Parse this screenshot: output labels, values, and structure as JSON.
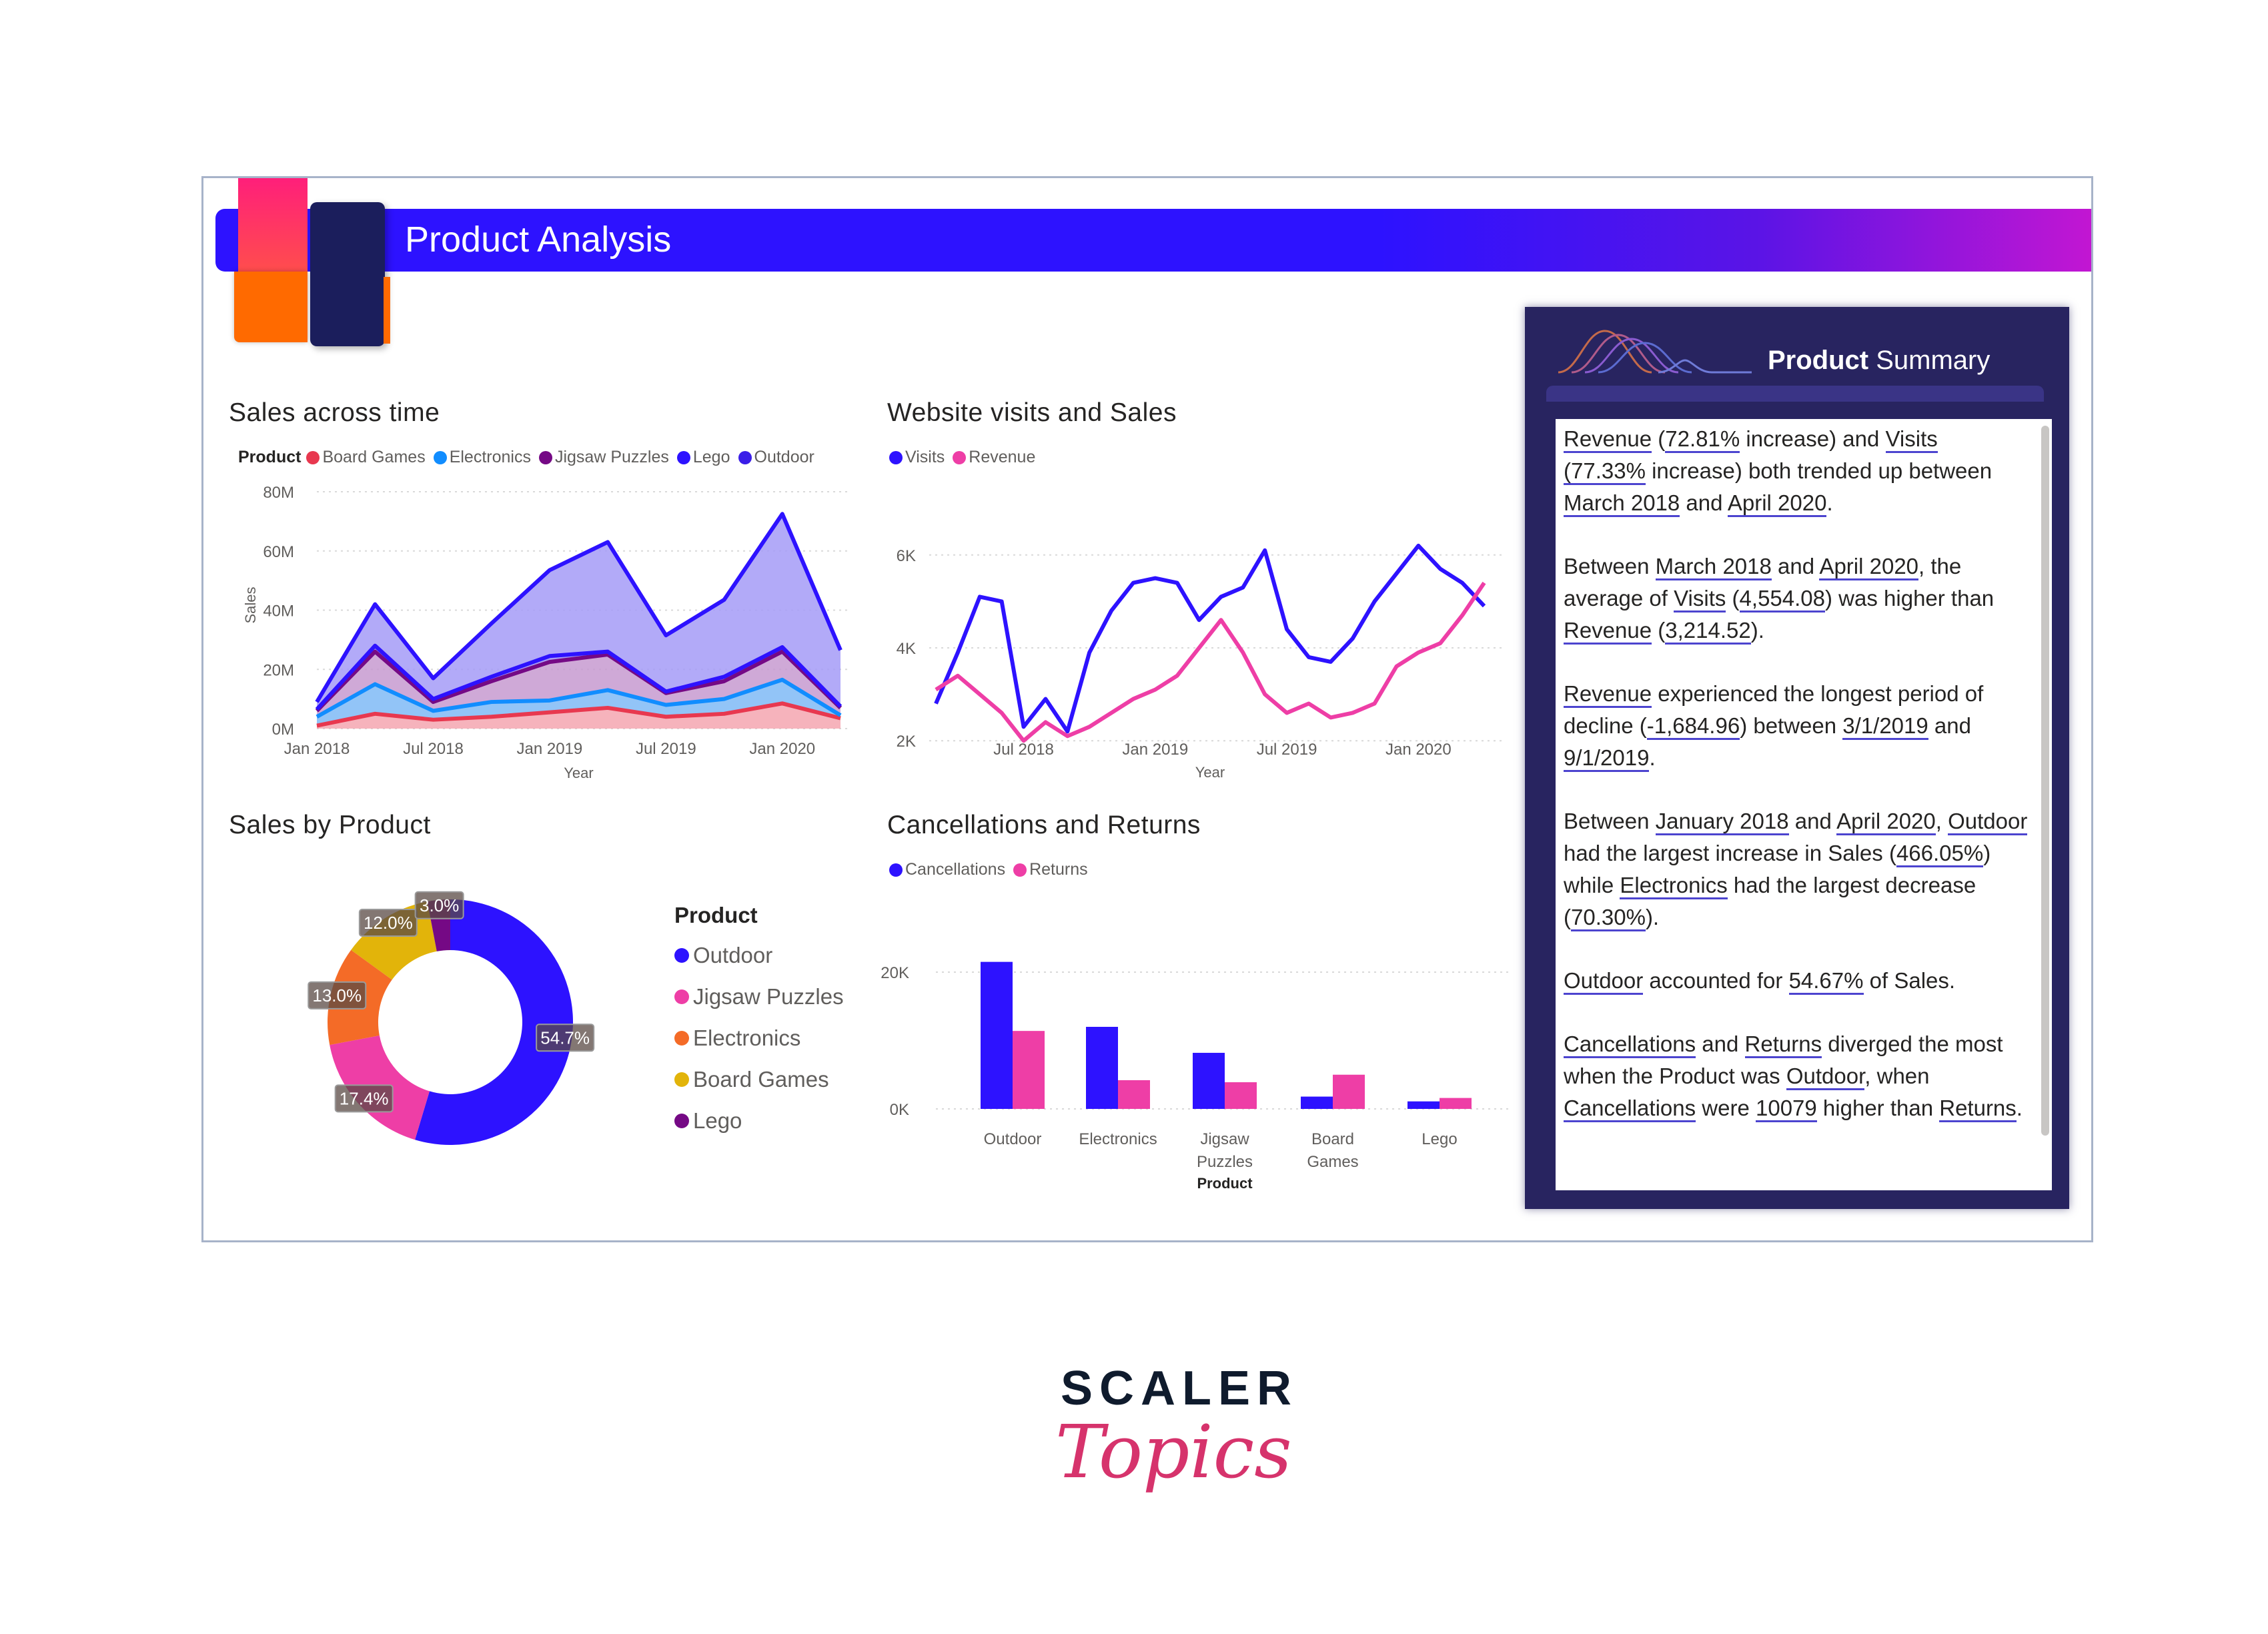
{
  "header": {
    "title": "Product Analysis"
  },
  "colors": {
    "banner": "#2d12ff",
    "summary_bg": "#282460",
    "accent_pink": "#ee3ea6",
    "brand_pink": "#d6336c"
  },
  "sales_time": {
    "title": "Sales across time",
    "legend_title": "Product",
    "series_names": [
      "Board Games",
      "Electronics",
      "Jigsaw Puzzles",
      "Lego",
      "Outdoor"
    ],
    "y_ticks": [
      "80M",
      "60M",
      "40M",
      "20M",
      "0M"
    ],
    "y_label": "Sales",
    "x_ticks": [
      "Jan 2018",
      "Jul 2018",
      "Jan 2019",
      "Jul 2019",
      "Jan 2020"
    ],
    "x_label": "Year"
  },
  "visits": {
    "title": "Website visits and Sales",
    "series_names": [
      "Visits",
      "Revenue"
    ],
    "y_ticks": [
      "6K",
      "4K",
      "2K"
    ],
    "x_ticks": [
      "Jul 2018",
      "Jan 2019",
      "Jul 2019",
      "Jan 2020"
    ],
    "x_label": "Year"
  },
  "donut": {
    "title": "Sales by Product",
    "legend_title": "Product",
    "labels": [
      "Outdoor",
      "Jigsaw Puzzles",
      "Electronics",
      "Board Games",
      "Lego"
    ],
    "pct_labels": [
      "54.7%",
      "17.4%",
      "13.0%",
      "12.0%",
      "3.0%"
    ]
  },
  "cancel": {
    "title": "Cancellations and Returns",
    "series_names": [
      "Cancellations",
      "Returns"
    ],
    "y_ticks": [
      "20K",
      "0K"
    ],
    "categories": [
      "Outdoor",
      "Electronics",
      "Jigsaw",
      "Puzzles",
      "Board",
      "Games",
      "Lego"
    ],
    "x_label": "Product"
  },
  "summary": {
    "title_bold": "Product",
    "title_rest": " Summary",
    "p1": {
      "a": "Revenue",
      "b": " (",
      "c": "72.81%",
      "d": " increase) and ",
      "e": "Visits",
      "f": "(77.33%",
      "g": " increase) both trended up between ",
      "h": "March 2018",
      "i": " and ",
      "j": "April 2020",
      "k": "."
    },
    "p2": {
      "a": "Between ",
      "b": "March 2018",
      "c": " and ",
      "d": "April 2020",
      "e": ", the average of ",
      "f": "Visits",
      "g": " (",
      "h": "4,554.08",
      "i": ") was higher than ",
      "j": "Revenue",
      "k": " (",
      "l": "3,214.52",
      "m": ")."
    },
    "p3": {
      "a": "Revenue",
      "b": " experienced the longest period of decline (",
      "c": "-1,684.96",
      "d": ") between ",
      "e": "3/1/2019",
      "f": " and ",
      "g": "9/1/2019",
      "h": "."
    },
    "p4": {
      "a": "Between ",
      "b": "January 2018",
      "c": " and ",
      "d": "April 2020",
      "e": ", ",
      "f": "Outdoor",
      "g": " had the largest increase in Sales (",
      "h": "466.05%",
      "i": ") while ",
      "j": "Electronics",
      "k": " had the largest decrease (",
      "l": "70.30%",
      "m": ")."
    },
    "p5": {
      "a": "Outdoor",
      "b": " accounted for ",
      "c": "54.67%",
      "d": " of Sales."
    },
    "p6": {
      "a": "Cancellations",
      "b": " and ",
      "c": "Returns",
      "d": " diverged the most when the Product was ",
      "e": "Outdoor",
      "f": ", when ",
      "g": "Cancellations",
      "h": " were ",
      "i": "10079",
      "j": " higher than ",
      "k": "Returns",
      "l": "."
    }
  },
  "brand": {
    "line1": "SCALER",
    "line2": "Topics"
  },
  "chart_data": [
    {
      "type": "area",
      "title": "Sales across time",
      "xlabel": "Year",
      "ylabel": "Sales",
      "ylim": [
        0,
        80000000
      ],
      "x": [
        "Jan 2018",
        "Apr 2018",
        "Jul 2018",
        "Oct 2018",
        "Jan 2019",
        "Apr 2019",
        "Jul 2019",
        "Oct 2019",
        "Jan 2020",
        "Apr 2020"
      ],
      "series": [
        {
          "name": "Board Games",
          "color": "#e8384f",
          "values": [
            1000000,
            5000000,
            3000000,
            4000000,
            5500000,
            7000000,
            4000000,
            5000000,
            8500000,
            3500000
          ]
        },
        {
          "name": "Electronics",
          "color": "#118dff",
          "values": [
            3000000,
            10000000,
            3000000,
            5000000,
            4000000,
            6000000,
            4000000,
            5000000,
            8000000,
            1000000
          ]
        },
        {
          "name": "Jigsaw Puzzles",
          "color": "#750985",
          "values": [
            2000000,
            11000000,
            3000000,
            7000000,
            13000000,
            12000000,
            4000000,
            6000000,
            9500000,
            2500000
          ]
        },
        {
          "name": "Lego",
          "color": "#2d12ff",
          "values": [
            500000,
            2000000,
            1000000,
            1500000,
            2000000,
            1000000,
            500000,
            1500000,
            1500000,
            500000
          ]
        },
        {
          "name": "Outdoor",
          "color": "#2d12ff",
          "values": [
            2500000,
            14000000,
            7000000,
            18000000,
            29000000,
            37000000,
            19000000,
            26000000,
            45000000,
            19000000
          ]
        }
      ]
    },
    {
      "type": "line",
      "title": "Website visits and Sales",
      "xlabel": "Year",
      "ylim": [
        1500,
        6500
      ],
      "x": [
        "Mar 2018",
        "Apr 2018",
        "May 2018",
        "Jun 2018",
        "Jul 2018",
        "Aug 2018",
        "Sep 2018",
        "Oct 2018",
        "Nov 2018",
        "Dec 2018",
        "Jan 2019",
        "Feb 2019",
        "Mar 2019",
        "Apr 2019",
        "May 2019",
        "Jun 2019",
        "Jul 2019",
        "Aug 2019",
        "Sep 2019",
        "Oct 2019",
        "Nov 2019",
        "Dec 2019",
        "Jan 2020",
        "Feb 2020",
        "Mar 2020",
        "Apr 2020"
      ],
      "series": [
        {
          "name": "Visits",
          "color": "#2d12ff",
          "values": [
            2800,
            3900,
            5100,
            5000,
            2300,
            2900,
            2200,
            3900,
            4800,
            5400,
            5500,
            5400,
            4600,
            5100,
            5300,
            6100,
            4400,
            3800,
            3700,
            4200,
            5000,
            5600,
            6200,
            5700,
            5400,
            4900
          ]
        },
        {
          "name": "Revenue",
          "color": "#ee3ea6",
          "values": [
            3100,
            3400,
            3000,
            2600,
            2000,
            2400,
            2100,
            2300,
            2600,
            2900,
            3100,
            3400,
            4000,
            4600,
            3900,
            3000,
            2600,
            2800,
            2500,
            2600,
            2800,
            3600,
            3900,
            4100,
            4700,
            5400
          ]
        }
      ]
    },
    {
      "type": "pie",
      "title": "Sales by Product",
      "labels": [
        "Outdoor",
        "Jigsaw Puzzles",
        "Electronics",
        "Board Games",
        "Lego"
      ],
      "values": [
        54.7,
        17.4,
        13.0,
        12.0,
        3.0
      ],
      "colors": [
        "#2d12ff",
        "#ee3ea6",
        "#f46b27",
        "#e2b40a",
        "#750985"
      ]
    },
    {
      "type": "bar",
      "title": "Cancellations and Returns",
      "xlabel": "Product",
      "ylim": [
        0,
        25000
      ],
      "categories": [
        "Outdoor",
        "Electronics",
        "Jigsaw Puzzles",
        "Board Games",
        "Lego"
      ],
      "series": [
        {
          "name": "Cancellations",
          "color": "#2d12ff",
          "values": [
            21500,
            12000,
            8200,
            1800,
            1100
          ]
        },
        {
          "name": "Returns",
          "color": "#ee3ea6",
          "values": [
            11400,
            4200,
            3900,
            5000,
            1600
          ]
        }
      ]
    }
  ]
}
